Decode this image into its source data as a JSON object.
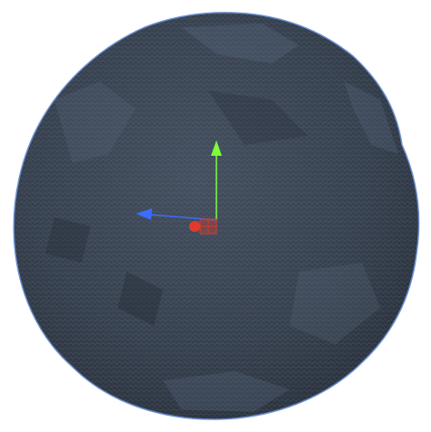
{
  "scene": {
    "background_color": "#ffffff",
    "mesh": {
      "shape": "sphere",
      "render_mode": "wireframe-shaded",
      "base_color": "#3a4452",
      "wire_color": "#8fa8c8",
      "outline_color": "#6a8fd0"
    },
    "gizmo": {
      "type": "move-tool",
      "axes": [
        {
          "axis": "y",
          "color": "#7dff3a",
          "icon": "arrow-up-icon"
        },
        {
          "axis": "x",
          "color": "#3a6cff",
          "icon": "arrow-left-icon"
        },
        {
          "axis": "z",
          "color": "#e23a2a",
          "icon": "pivot-handle-icon"
        }
      ],
      "plane_handle_color": "#e23a2a"
    }
  }
}
